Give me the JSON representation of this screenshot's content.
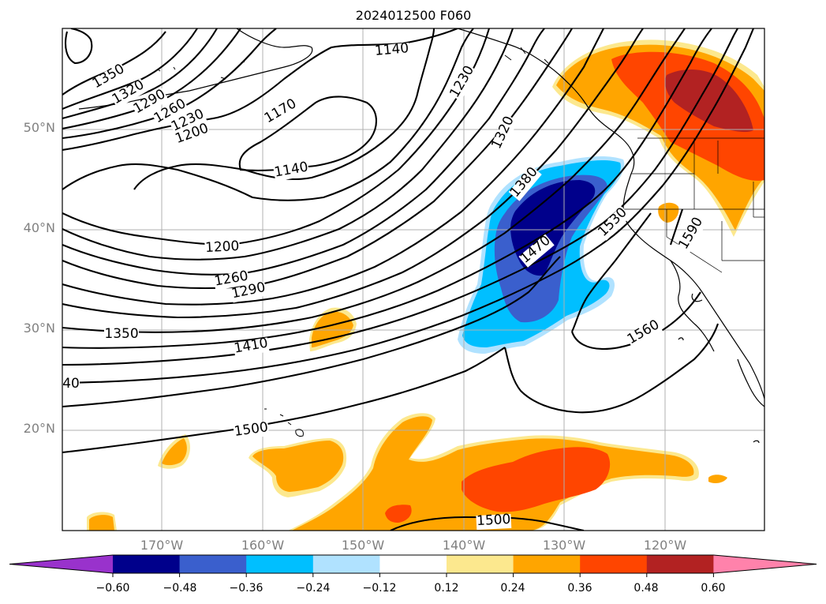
{
  "title": "2024012500 F060",
  "map": {
    "lat_labels": [
      {
        "text": "50°N",
        "lat": 50
      },
      {
        "text": "40°N",
        "lat": 40
      },
      {
        "text": "30°N",
        "lat": 30
      },
      {
        "text": "20°N",
        "lat": 20
      }
    ],
    "lon_labels": [
      {
        "text": "170°W",
        "lon": -170
      },
      {
        "text": "160°W",
        "lon": -160
      },
      {
        "text": "150°W",
        "lon": -150
      },
      {
        "text": "140°W",
        "lon": -140
      },
      {
        "text": "130°W",
        "lon": -130
      },
      {
        "text": "120°W",
        "lon": -120
      }
    ],
    "grid": true,
    "contour_labels": [
      "1350",
      "1320",
      "1290",
      "1260",
      "1230",
      "1200",
      "1170",
      "1140",
      "1140",
      "1200",
      "1260",
      "1290",
      "1350",
      "1410",
      "40",
      "1500",
      "1500",
      "1140",
      "1230",
      "1320",
      "1380",
      "1470",
      "1530",
      "1590",
      "1560"
    ]
  },
  "colorbar": {
    "ticks": [
      "−0.60",
      "−0.48",
      "−0.36",
      "−0.24",
      "−0.12",
      "0.12",
      "0.24",
      "0.36",
      "0.48",
      "0.60"
    ],
    "colors": [
      "#9932cc",
      "#00008b",
      "#3a5fcd",
      "#00bfff",
      "#b0e2ff",
      "#ffffff",
      "#fce88e",
      "#ffa500",
      "#ff4500",
      "#b22222",
      "#ff82ab"
    ]
  }
}
